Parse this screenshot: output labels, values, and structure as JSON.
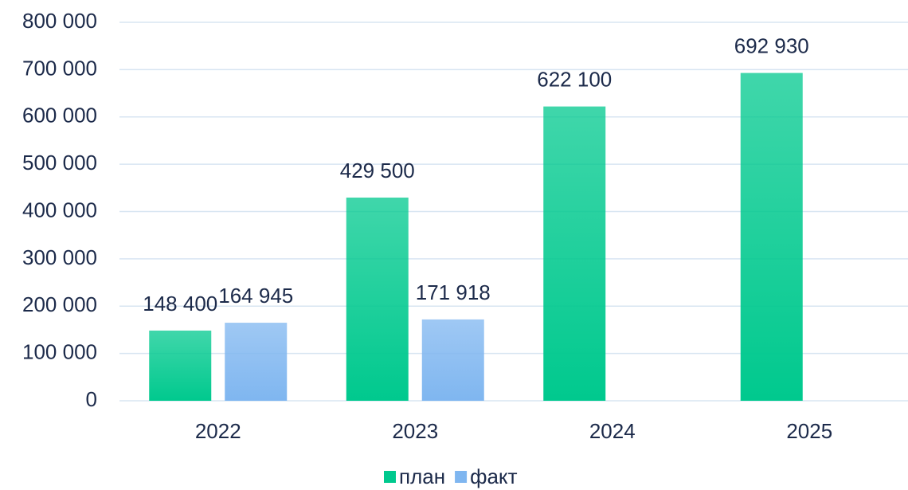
{
  "chart_data": {
    "type": "bar",
    "categories": [
      "2022",
      "2023",
      "2024",
      "2025"
    ],
    "series": [
      {
        "name": "план",
        "color": "#00c98e",
        "values": [
          148400,
          429500,
          622100,
          692930
        ],
        "value_labels": [
          "148 400",
          "429 500",
          "622 100",
          "692 930"
        ]
      },
      {
        "name": "факт",
        "color": "#7fb6f0",
        "values": [
          164945,
          171918,
          null,
          null
        ],
        "value_labels": [
          "164 945",
          "171 918",
          null,
          null
        ]
      }
    ],
    "ylim": [
      0,
      800000
    ],
    "yticks": [
      {
        "value": 0,
        "label": "0"
      },
      {
        "value": 100000,
        "label": "100 000"
      },
      {
        "value": 200000,
        "label": "200 000"
      },
      {
        "value": 300000,
        "label": "300 000"
      },
      {
        "value": 400000,
        "label": "400 000"
      },
      {
        "value": 500000,
        "label": "500 000"
      },
      {
        "value": 600000,
        "label": "600 000"
      },
      {
        "value": 700000,
        "label": "700 000"
      },
      {
        "value": 800000,
        "label": "800 000"
      }
    ],
    "grid": true,
    "legend": "bottom"
  }
}
